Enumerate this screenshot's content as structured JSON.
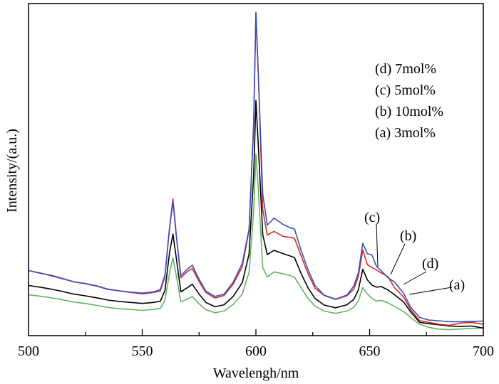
{
  "chart_data": {
    "type": "line",
    "title": "",
    "xlabel": "Wavelengh/nm",
    "ylabel": "Intensity/(a.u.)",
    "xlim": [
      500,
      700
    ],
    "ylim": [
      0,
      100
    ],
    "x_ticks": [
      500,
      550,
      600,
      650,
      700
    ],
    "x_tick_labels": [
      "500",
      "550",
      "600",
      "650",
      "700"
    ],
    "y_tick_labels_shown": false,
    "grid": false,
    "legend_entries": [
      "(d) 7mol%",
      "(c) 5mol%",
      "(b) 10mol%",
      "(a) 3mol%"
    ],
    "legend_position": "top-right",
    "curve_labels": [
      "(c)",
      "(b)",
      "(d)",
      "(a)"
    ],
    "series": [
      {
        "label": "(c) 5mol%",
        "color": "#3a4fbf",
        "x": [
          500,
          505,
          510,
          515,
          520,
          525,
          530,
          535,
          540,
          545,
          550,
          555,
          558,
          560,
          562,
          563.5,
          565,
          567,
          570,
          572,
          575,
          578,
          582,
          586,
          590,
          594,
          597,
          599,
          600,
          601,
          603,
          605,
          608,
          612,
          615,
          617,
          620,
          623,
          626,
          630,
          635,
          640,
          643,
          645,
          647,
          649,
          651,
          653,
          655,
          658,
          661,
          665,
          668,
          672,
          676,
          680,
          685,
          690,
          695,
          700
        ],
        "values": [
          19.6,
          18.8,
          18.2,
          17.2,
          16.2,
          15.6,
          14.9,
          13.9,
          13.5,
          13.1,
          12.8,
          13.2,
          13.9,
          18.3,
          32.3,
          40.4,
          30.0,
          18.1,
          20.1,
          21.2,
          17.0,
          13.4,
          11.8,
          12.5,
          16.1,
          21.8,
          32.1,
          63.1,
          97.4,
          79.4,
          42.6,
          33.3,
          35.4,
          33.5,
          32.5,
          32.1,
          25.4,
          19.7,
          15.1,
          12.2,
          11.0,
          12.2,
          14.9,
          18.8,
          27.8,
          24.7,
          24.3,
          20.9,
          19.6,
          17.5,
          16.1,
          12.7,
          8.6,
          5.5,
          4.7,
          4.5,
          4.2,
          4.2,
          4.3,
          4.4
        ]
      },
      {
        "label": "(d) 7mol%",
        "color": "#d42a25",
        "x": [
          500,
          505,
          510,
          515,
          520,
          525,
          530,
          535,
          540,
          545,
          550,
          555,
          558,
          560,
          562,
          563.5,
          565,
          567,
          570,
          572,
          575,
          578,
          582,
          586,
          590,
          594,
          597,
          599,
          600,
          601,
          603,
          605,
          608,
          612,
          615,
          617,
          620,
          623,
          626,
          630,
          635,
          640,
          643,
          645,
          647,
          649,
          651,
          653,
          655,
          658,
          661,
          665,
          668,
          672,
          676,
          680,
          685,
          690,
          695,
          700
        ],
        "values": [
          19.6,
          18.9,
          18.0,
          17.1,
          16.2,
          15.7,
          15.0,
          14.0,
          13.5,
          13.0,
          12.6,
          13.0,
          13.5,
          17.8,
          32.5,
          41.2,
          30.4,
          17.4,
          19.4,
          20.2,
          16.3,
          13.0,
          11.3,
          12.1,
          15.5,
          20.8,
          31.8,
          64.0,
          97.2,
          79.8,
          38.0,
          30.3,
          31.4,
          29.9,
          29.6,
          29.3,
          23.8,
          18.5,
          14.3,
          12.1,
          10.9,
          12.0,
          14.0,
          17.7,
          25.8,
          21.4,
          20.5,
          19.8,
          18.9,
          17.8,
          14.4,
          11.6,
          7.9,
          4.5,
          4.0,
          3.5,
          3.1,
          3.8,
          4.0,
          3.4
        ]
      },
      {
        "label": "(b) 10mol%",
        "color": "#000000",
        "x": [
          500,
          505,
          510,
          515,
          520,
          525,
          530,
          535,
          540,
          545,
          550,
          555,
          558,
          560,
          562,
          563.5,
          565,
          567,
          570,
          572,
          575,
          578,
          582,
          586,
          590,
          594,
          597,
          599,
          600,
          601,
          603,
          605,
          608,
          612,
          615,
          617,
          620,
          623,
          626,
          630,
          635,
          640,
          643,
          645,
          647,
          649,
          651,
          653,
          655,
          658,
          661,
          665,
          668,
          672,
          676,
          680,
          685,
          690,
          695,
          700
        ],
        "values": [
          15.1,
          14.6,
          14.0,
          13.3,
          12.5,
          12.0,
          11.4,
          10.7,
          10.3,
          10.0,
          9.7,
          10.0,
          10.4,
          13.6,
          24.9,
          30.6,
          23.4,
          13.2,
          14.5,
          15.5,
          12.5,
          10.0,
          8.7,
          9.3,
          11.8,
          16.0,
          24.6,
          48.0,
          70.8,
          57.9,
          30.4,
          24.4,
          25.7,
          24.7,
          24.0,
          23.5,
          18.5,
          14.3,
          11.2,
          9.2,
          8.4,
          9.3,
          10.9,
          13.7,
          20.0,
          16.8,
          15.2,
          14.6,
          14.8,
          13.8,
          12.3,
          10.1,
          7.2,
          4.0,
          3.6,
          3.3,
          2.9,
          2.8,
          2.9,
          2.3
        ]
      },
      {
        "label": "(a) 3mol%",
        "color": "#5fb65f",
        "x": [
          500,
          505,
          510,
          515,
          520,
          525,
          530,
          535,
          540,
          545,
          550,
          555,
          558,
          560,
          562,
          563.5,
          565,
          567,
          570,
          572,
          575,
          578,
          582,
          586,
          590,
          594,
          597,
          599,
          600,
          601,
          603,
          605,
          608,
          612,
          615,
          617,
          620,
          623,
          626,
          630,
          635,
          640,
          643,
          645,
          647,
          649,
          651,
          653,
          655,
          658,
          661,
          665,
          668,
          672,
          676,
          680,
          685,
          690,
          695,
          700
        ],
        "values": [
          12.3,
          11.9,
          11.4,
          10.8,
          10.1,
          9.7,
          9.1,
          8.5,
          8.1,
          7.9,
          7.6,
          7.9,
          8.2,
          10.6,
          18.8,
          23.4,
          18.1,
          10.2,
          11.0,
          11.8,
          9.6,
          7.8,
          6.9,
          7.4,
          9.4,
          12.5,
          19.1,
          37.0,
          54.7,
          44.6,
          20.5,
          17.7,
          19.2,
          18.6,
          18.1,
          17.6,
          14.3,
          11.1,
          8.9,
          7.4,
          6.7,
          7.4,
          8.5,
          10.4,
          14.5,
          12.6,
          11.2,
          10.4,
          10.6,
          9.9,
          8.8,
          7.2,
          5.5,
          3.4,
          2.5,
          2.0,
          1.8,
          2.0,
          2.2,
          2.3
        ]
      }
    ]
  }
}
